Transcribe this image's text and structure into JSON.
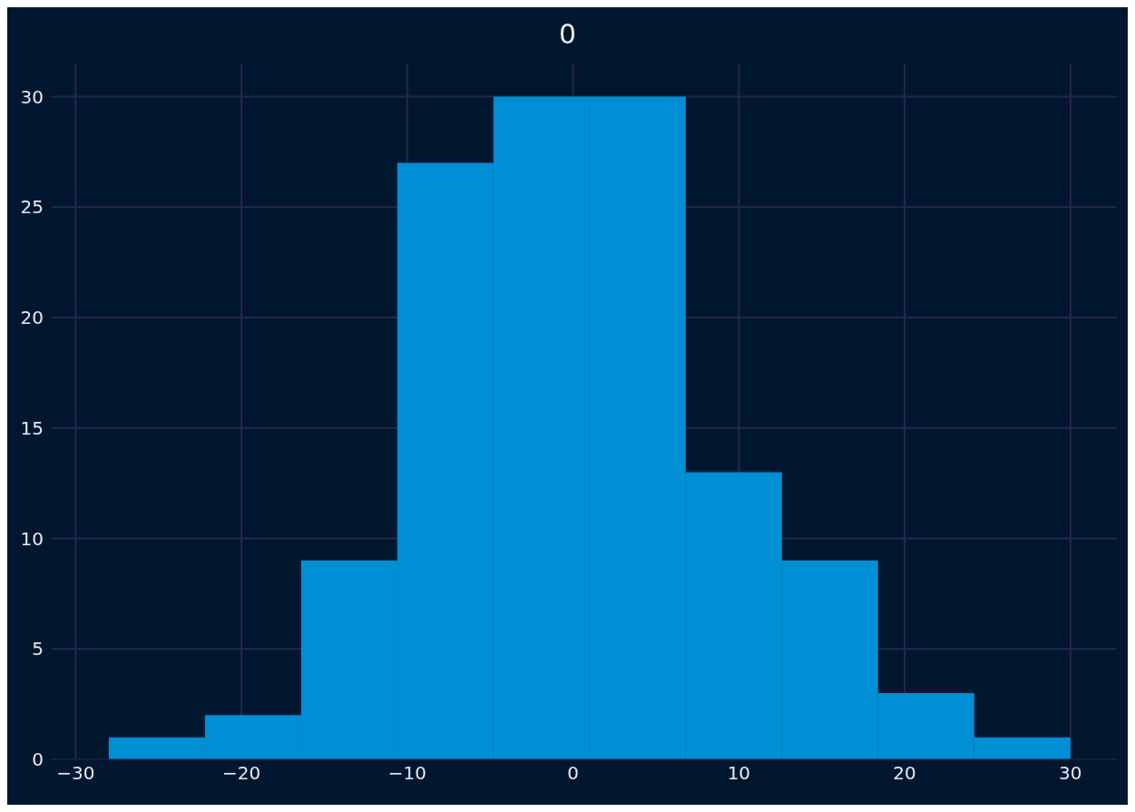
{
  "chart_data": {
    "type": "histogram",
    "title": "0",
    "bins": [
      -28.0,
      -22.2,
      -16.4,
      -10.6,
      -4.8,
      1.0,
      6.8,
      12.6,
      18.4,
      24.2,
      30.0
    ],
    "values": [
      1,
      2,
      9,
      27,
      30,
      30,
      13,
      9,
      3,
      1
    ],
    "color": "#008fd5",
    "xlim": [
      -31.5,
      32.8
    ],
    "xticks": [
      -30,
      -20,
      -10,
      0,
      10,
      20,
      30
    ],
    "ylim": [
      0,
      31.5
    ],
    "yticks": [
      0,
      5,
      10,
      15,
      20,
      25,
      30
    ],
    "grid": true
  }
}
